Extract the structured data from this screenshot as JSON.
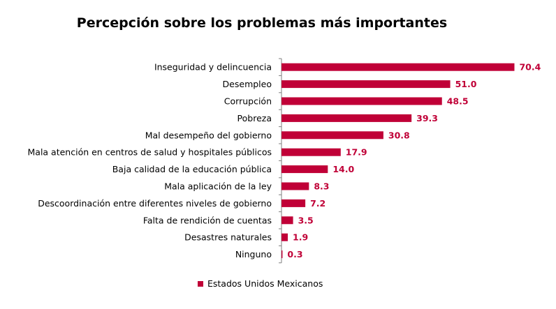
{
  "colors": {
    "bar": "#c00037",
    "axis": "#7f7f7f"
  },
  "chart_data": {
    "type": "bar",
    "orientation": "horizontal",
    "title": "Percepción sobre los problemas más importantes",
    "categories": [
      "Inseguridad y delincuencia",
      "Desempleo",
      "Corrupción",
      "Pobreza",
      "Mal desempeño del gobierno",
      "Mala atención en centros de salud y hospitales públicos",
      "Baja calidad de la educación pública",
      "Mala aplicación de la ley",
      "Descoordinación entre diferentes niveles de gobierno",
      "Falta de rendición de cuentas",
      "Desastres naturales",
      "Ninguno"
    ],
    "series": [
      {
        "name": "Estados Unidos Mexicanos",
        "values": [
          70.4,
          51.0,
          48.5,
          39.3,
          30.8,
          17.9,
          14.0,
          8.3,
          7.2,
          3.5,
          1.9,
          0.3
        ],
        "labels": [
          "70.4",
          "51.0",
          "48.5",
          "39.3",
          "30.8",
          "17.9",
          "14.0",
          "8.3",
          "7.2",
          "3.5",
          "1.9",
          "0.3"
        ]
      }
    ],
    "xlim": [
      0,
      76
    ],
    "grid": false,
    "legend_position": "bottom"
  }
}
